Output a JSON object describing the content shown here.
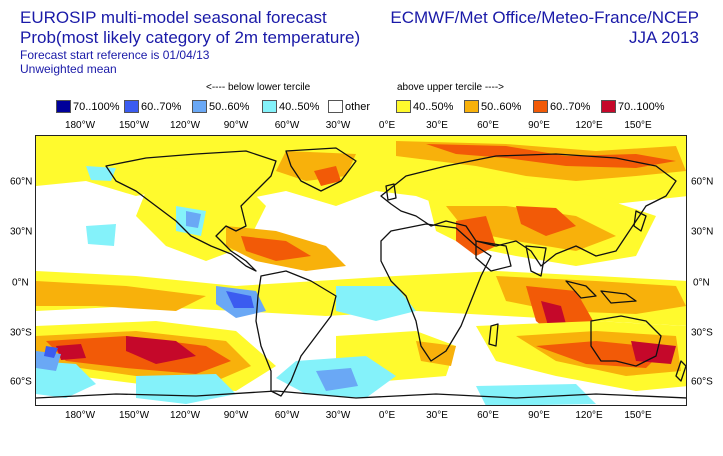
{
  "header": {
    "title": "EUROSIP multi-model seasonal forecast",
    "subtitle": "Prob(most likely category of 2m temperature)",
    "forecast_ref": "Forecast start reference is 01/04/13",
    "mean_type": "Unweighted mean",
    "organizations": "ECMWF/Met Office/Meteo-France/NCEP",
    "season": "JJA 2013"
  },
  "tercile_labels": {
    "below": "<---- below lower tercile",
    "above": "above upper tercile ---->"
  },
  "legend": [
    {
      "label": "70..100%",
      "color": "#00009a"
    },
    {
      "label": "60..70%",
      "color": "#3b5cf0"
    },
    {
      "label": "50..60%",
      "color": "#6aa8f5"
    },
    {
      "label": "40..50%",
      "color": "#84f2fa"
    },
    {
      "label": "other",
      "color": "#ffffff"
    },
    {
      "label": "40..50%",
      "color": "#fffa2d"
    },
    {
      "label": "50..60%",
      "color": "#f8b10b"
    },
    {
      "label": "60..70%",
      "color": "#f25a07"
    },
    {
      "label": "70..100%",
      "color": "#c5082a"
    }
  ],
  "map": {
    "lon_labels": [
      "180°W",
      "150°W",
      "120°W",
      "90°W",
      "60°W",
      "30°W",
      "0°E",
      "30°E",
      "60°E",
      "90°E",
      "120°E",
      "150°E"
    ],
    "lat_labels": [
      "60°N",
      "30°N",
      "0°N",
      "30°S",
      "60°S"
    ]
  }
}
